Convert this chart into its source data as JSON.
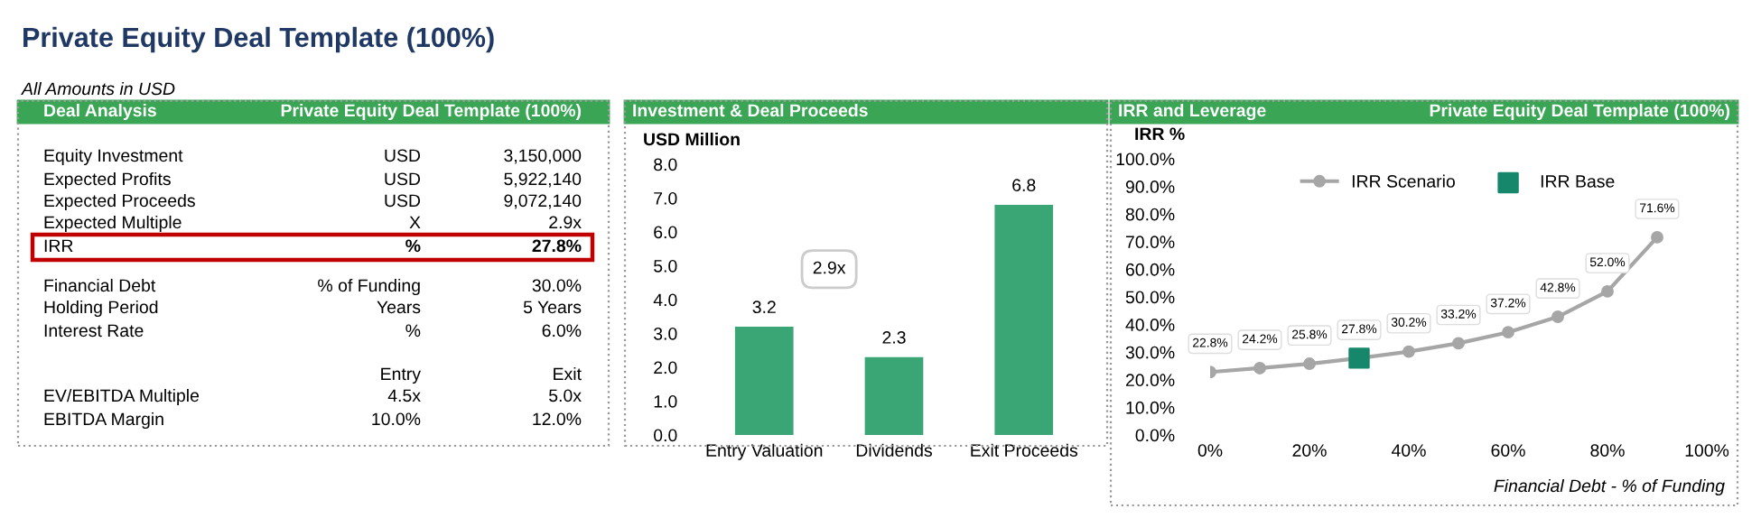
{
  "chart_data": [
    {
      "type": "other",
      "title": "Private Equity Deal Template (100%)",
      "subtitle": "All Amounts in USD",
      "annotations": [
        "Deal Analysis",
        "Private Equity Deal Template (100%)",
        "Equity Investment",
        "USD",
        "3,150,000",
        "Expected Profits",
        "USD",
        "5,922,140",
        "Expected Proceeds",
        "USD",
        "9,072,140",
        "Expected Multiple",
        "X",
        "2.9x",
        "IRR",
        "%",
        "27.8%",
        "Financial Debt",
        "% of Funding",
        "30.0%",
        "Holding Period",
        "Years",
        "5 Years",
        "Interest Rate",
        "%",
        "6.0%",
        "Entry",
        "Exit",
        "EV/EBITDA Multiple",
        "4.5x",
        "5.0x",
        "EBITDA Margin",
        "10.0%",
        "12.0%"
      ]
    },
    {
      "type": "bar",
      "title": "Investment & Deal Proceeds",
      "ylabel": "USD Million",
      "categories": [
        "Entry Valuation",
        "Dividends",
        "Exit Proceeds"
      ],
      "values": [
        3.2,
        2.3,
        6.8
      ],
      "color": "#3aa676",
      "data_labels": true,
      "ylim": [
        0,
        8
      ],
      "yticks": [
        {
          "value": 0,
          "label": "0.0"
        },
        {
          "value": 1,
          "label": "1.0"
        },
        {
          "value": 2,
          "label": "2.0"
        },
        {
          "value": 3,
          "label": "3.0"
        },
        {
          "value": 4,
          "label": "4.0"
        },
        {
          "value": 5,
          "label": "5.0"
        },
        {
          "value": 6,
          "label": "6.0"
        },
        {
          "value": 7,
          "label": "7.0"
        },
        {
          "value": 8,
          "label": "8.0"
        }
      ],
      "annotations": [
        "2.9x"
      ],
      "grid": false
    },
    {
      "type": "line",
      "title": "IRR and Leverage",
      "subtitle": "Private Equity Deal Template (100%)",
      "ylabel": "IRR %",
      "xlabel": "Financial Debt - % of Funding",
      "legend": "top",
      "grid": false,
      "series": [
        {
          "name": "IRR Scenario",
          "type": "line",
          "color": "#a6a6a6",
          "marker": "circle",
          "x": [
            0,
            10,
            20,
            30,
            40,
            50,
            60,
            70,
            80,
            90
          ],
          "values": [
            22.8,
            24.2,
            25.8,
            27.8,
            30.2,
            33.2,
            37.2,
            42.8,
            52.0,
            71.6
          ],
          "value_labels": [
            "22.8%",
            "24.2%",
            "25.8%",
            "27.8%",
            "30.2%",
            "33.2%",
            "37.2%",
            "42.8%",
            "52.0%",
            "71.6%"
          ]
        },
        {
          "name": "IRR Base",
          "type": "scatter",
          "color": "#16876a",
          "marker": "square",
          "x": [
            30
          ],
          "values": [
            27.8
          ]
        }
      ],
      "xlim": [
        0,
        100
      ],
      "xticks": [
        {
          "value": 0,
          "label": "0%"
        },
        {
          "value": 20,
          "label": "20%"
        },
        {
          "value": 40,
          "label": "40%"
        },
        {
          "value": 60,
          "label": "60%"
        },
        {
          "value": 80,
          "label": "80%"
        },
        {
          "value": 100,
          "label": "100%"
        }
      ],
      "ylim": [
        0,
        100
      ],
      "yticks": [
        {
          "value": 0,
          "label": "0.0%"
        },
        {
          "value": 10,
          "label": "10.0%"
        },
        {
          "value": 20,
          "label": "20.0%"
        },
        {
          "value": 30,
          "label": "30.0%"
        },
        {
          "value": 40,
          "label": "40.0%"
        },
        {
          "value": 50,
          "label": "50.0%"
        },
        {
          "value": 60,
          "label": "60.0%"
        },
        {
          "value": 70,
          "label": "70.0%"
        },
        {
          "value": 80,
          "label": "80.0%"
        },
        {
          "value": 90,
          "label": "90.0%"
        },
        {
          "value": 100,
          "label": "100.0%"
        }
      ]
    }
  ]
}
